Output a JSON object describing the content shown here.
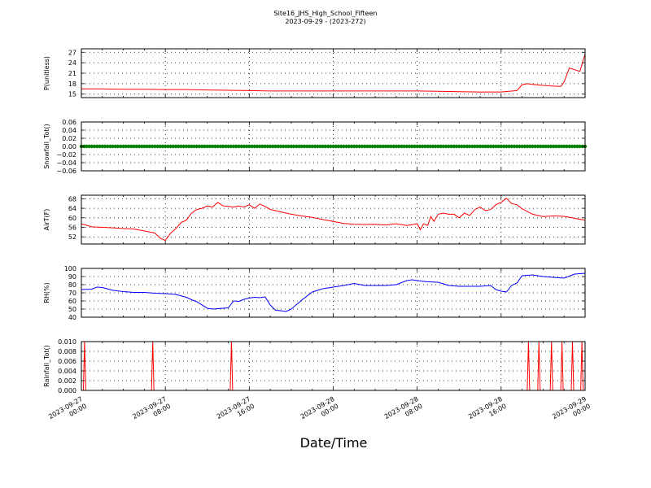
{
  "figure": {
    "title": "Site16_JHS_High_School_Fifteen",
    "subtitle": "2023-09-29 - (2023-272)",
    "xlabel": "Date/Time",
    "x_ticks": [
      "2023-09-27\n00:00",
      "2023-09-27\n08:00",
      "2023-09-27\n16:00",
      "2023-09-28\n00:00",
      "2023-09-28\n08:00",
      "2023-09-28\n16:00",
      "2023-09-29\n00:00"
    ]
  },
  "chart_data": [
    {
      "type": "line",
      "ylabel": "P(unitless)",
      "ylim": [
        14,
        28
      ],
      "yticks": [
        "15",
        "18",
        "21",
        "24",
        "27"
      ],
      "ytick_values": [
        15,
        18,
        21,
        24,
        27
      ],
      "grid": true,
      "color": "#ff0000",
      "x_hours": [
        0,
        2,
        4,
        6,
        8,
        10,
        12,
        14,
        16,
        18,
        20,
        22,
        24,
        26,
        28,
        30,
        32,
        34,
        36,
        38,
        40,
        41.5,
        42,
        42.5,
        43,
        44,
        45,
        45.7,
        46,
        46.5,
        47,
        47.5,
        48
      ],
      "y": [
        16.5,
        16.5,
        16.4,
        16.4,
        16.3,
        16.3,
        16.2,
        16.1,
        16.0,
        15.9,
        15.9,
        15.9,
        15.9,
        15.9,
        15.9,
        15.9,
        15.9,
        15.8,
        15.7,
        15.6,
        15.6,
        16.0,
        17.7,
        18.0,
        17.8,
        17.5,
        17.3,
        17.2,
        18.5,
        22.5,
        22.0,
        21.5,
        26.5
      ]
    },
    {
      "type": "scatter",
      "ylabel": "Snowfall_Tot()",
      "ylim": [
        -0.06,
        0.06
      ],
      "yticks": [
        "−0.06",
        "−0.04",
        "−0.02",
        "0.00",
        "0.02",
        "0.04",
        "0.06"
      ],
      "ytick_values": [
        -0.06,
        -0.04,
        -0.02,
        0.0,
        0.02,
        0.04,
        0.06
      ],
      "grid": true,
      "color": "#008000",
      "constant_value": 0.0,
      "x_range_hours": [
        0,
        48
      ]
    },
    {
      "type": "line",
      "ylabel": "AirT(F)",
      "ylim": [
        49,
        69.5
      ],
      "yticks": [
        "52",
        "56",
        "60",
        "64",
        "68"
      ],
      "ytick_values": [
        52,
        56,
        60,
        64,
        68
      ],
      "grid": true,
      "color": "#ff0000",
      "x_hours": [
        0,
        1,
        2,
        3,
        4,
        5,
        6,
        7,
        7.5,
        8,
        8.5,
        9,
        9.5,
        10,
        10.5,
        11,
        11.5,
        12,
        12.5,
        13,
        13.5,
        14,
        14.5,
        15,
        15.5,
        16,
        16.5,
        17,
        17.5,
        18,
        18.5,
        19,
        20,
        21,
        22,
        23,
        24,
        25,
        26,
        27,
        28,
        29,
        30,
        31,
        32,
        32.3,
        32.6,
        33,
        33.3,
        33.6,
        34,
        34.5,
        35,
        35.5,
        36,
        36.5,
        37,
        37.5,
        38,
        38.5,
        39,
        39.5,
        40,
        40.5,
        41,
        41.5,
        42,
        43,
        44,
        45,
        46,
        47,
        48
      ],
      "y": [
        57.5,
        56.2,
        56.0,
        55.8,
        55.5,
        55.3,
        54.5,
        53.6,
        51.5,
        50.5,
        53.5,
        55.5,
        58.0,
        59.0,
        62.0,
        63.5,
        64.0,
        65.0,
        64.5,
        66.5,
        65.0,
        64.8,
        64.5,
        65.0,
        64.5,
        65.5,
        64.0,
        65.8,
        64.8,
        63.5,
        63.0,
        62.5,
        61.5,
        60.8,
        60.2,
        59.3,
        58.5,
        57.6,
        57.3,
        57.2,
        57.3,
        57.0,
        57.5,
        56.8,
        57.5,
        55.0,
        57.5,
        56.8,
        60.5,
        58.5,
        61.5,
        62.0,
        61.5,
        61.5,
        60.0,
        62.0,
        61.0,
        63.5,
        64.5,
        63.0,
        63.5,
        65.5,
        66.5,
        68.2,
        66.0,
        65.5,
        63.8,
        61.5,
        60.5,
        60.8,
        60.6,
        59.8,
        59.0
      ]
    },
    {
      "type": "line",
      "ylabel": "RH(%)",
      "ylim": [
        40,
        100
      ],
      "yticks": [
        "40",
        "50",
        "60",
        "70",
        "80",
        "90",
        "100"
      ],
      "ytick_values": [
        40,
        50,
        60,
        70,
        80,
        90,
        100
      ],
      "grid": true,
      "color": "#0000ff",
      "x_hours": [
        0,
        1,
        1.5,
        2,
        3,
        4,
        5,
        6,
        7,
        8,
        9,
        10,
        10.5,
        11,
        12,
        12.5,
        13,
        14,
        14.5,
        15,
        15.5,
        16,
        16.5,
        17,
        17.5,
        18,
        18.5,
        19,
        19.5,
        20,
        21,
        22,
        23,
        24,
        25,
        26,
        27,
        28,
        29,
        30,
        31,
        31.5,
        32,
        33,
        34,
        35,
        36,
        37,
        38,
        39,
        39.5,
        40,
        40.5,
        41,
        41.5,
        42,
        43,
        44,
        45,
        46,
        47,
        48
      ],
      "y": [
        74,
        74.5,
        77,
        76.5,
        73,
        71.5,
        70.5,
        70.5,
        69.5,
        69,
        68,
        64.5,
        61.5,
        59,
        51,
        50,
        50.5,
        51.5,
        60,
        59.5,
        62,
        63.5,
        64.5,
        64,
        65,
        55,
        48.5,
        48,
        47,
        50,
        61,
        71,
        75,
        77,
        79,
        81.5,
        79,
        79,
        79,
        80,
        85,
        86,
        85,
        83.5,
        83,
        79,
        78,
        78,
        78,
        79,
        74,
        72,
        71,
        79,
        82,
        91,
        92,
        90,
        89,
        88,
        93,
        94
      ]
    },
    {
      "type": "line",
      "ylabel": "Rainfall_Tot()",
      "ylim": [
        0.0,
        0.01
      ],
      "yticks": [
        "0.000",
        "0.002",
        "0.004",
        "0.006",
        "0.008",
        "0.010"
      ],
      "ytick_values": [
        0.0,
        0.002,
        0.004,
        0.006,
        0.008,
        0.01
      ],
      "grid": true,
      "color": "#ff0000",
      "spikes_hours": [
        0.3,
        6.8,
        14.3,
        42.6,
        43.6,
        44.8,
        45.8,
        46.8,
        47.7
      ],
      "spike_value": 0.01,
      "baseline": 0.0
    }
  ]
}
